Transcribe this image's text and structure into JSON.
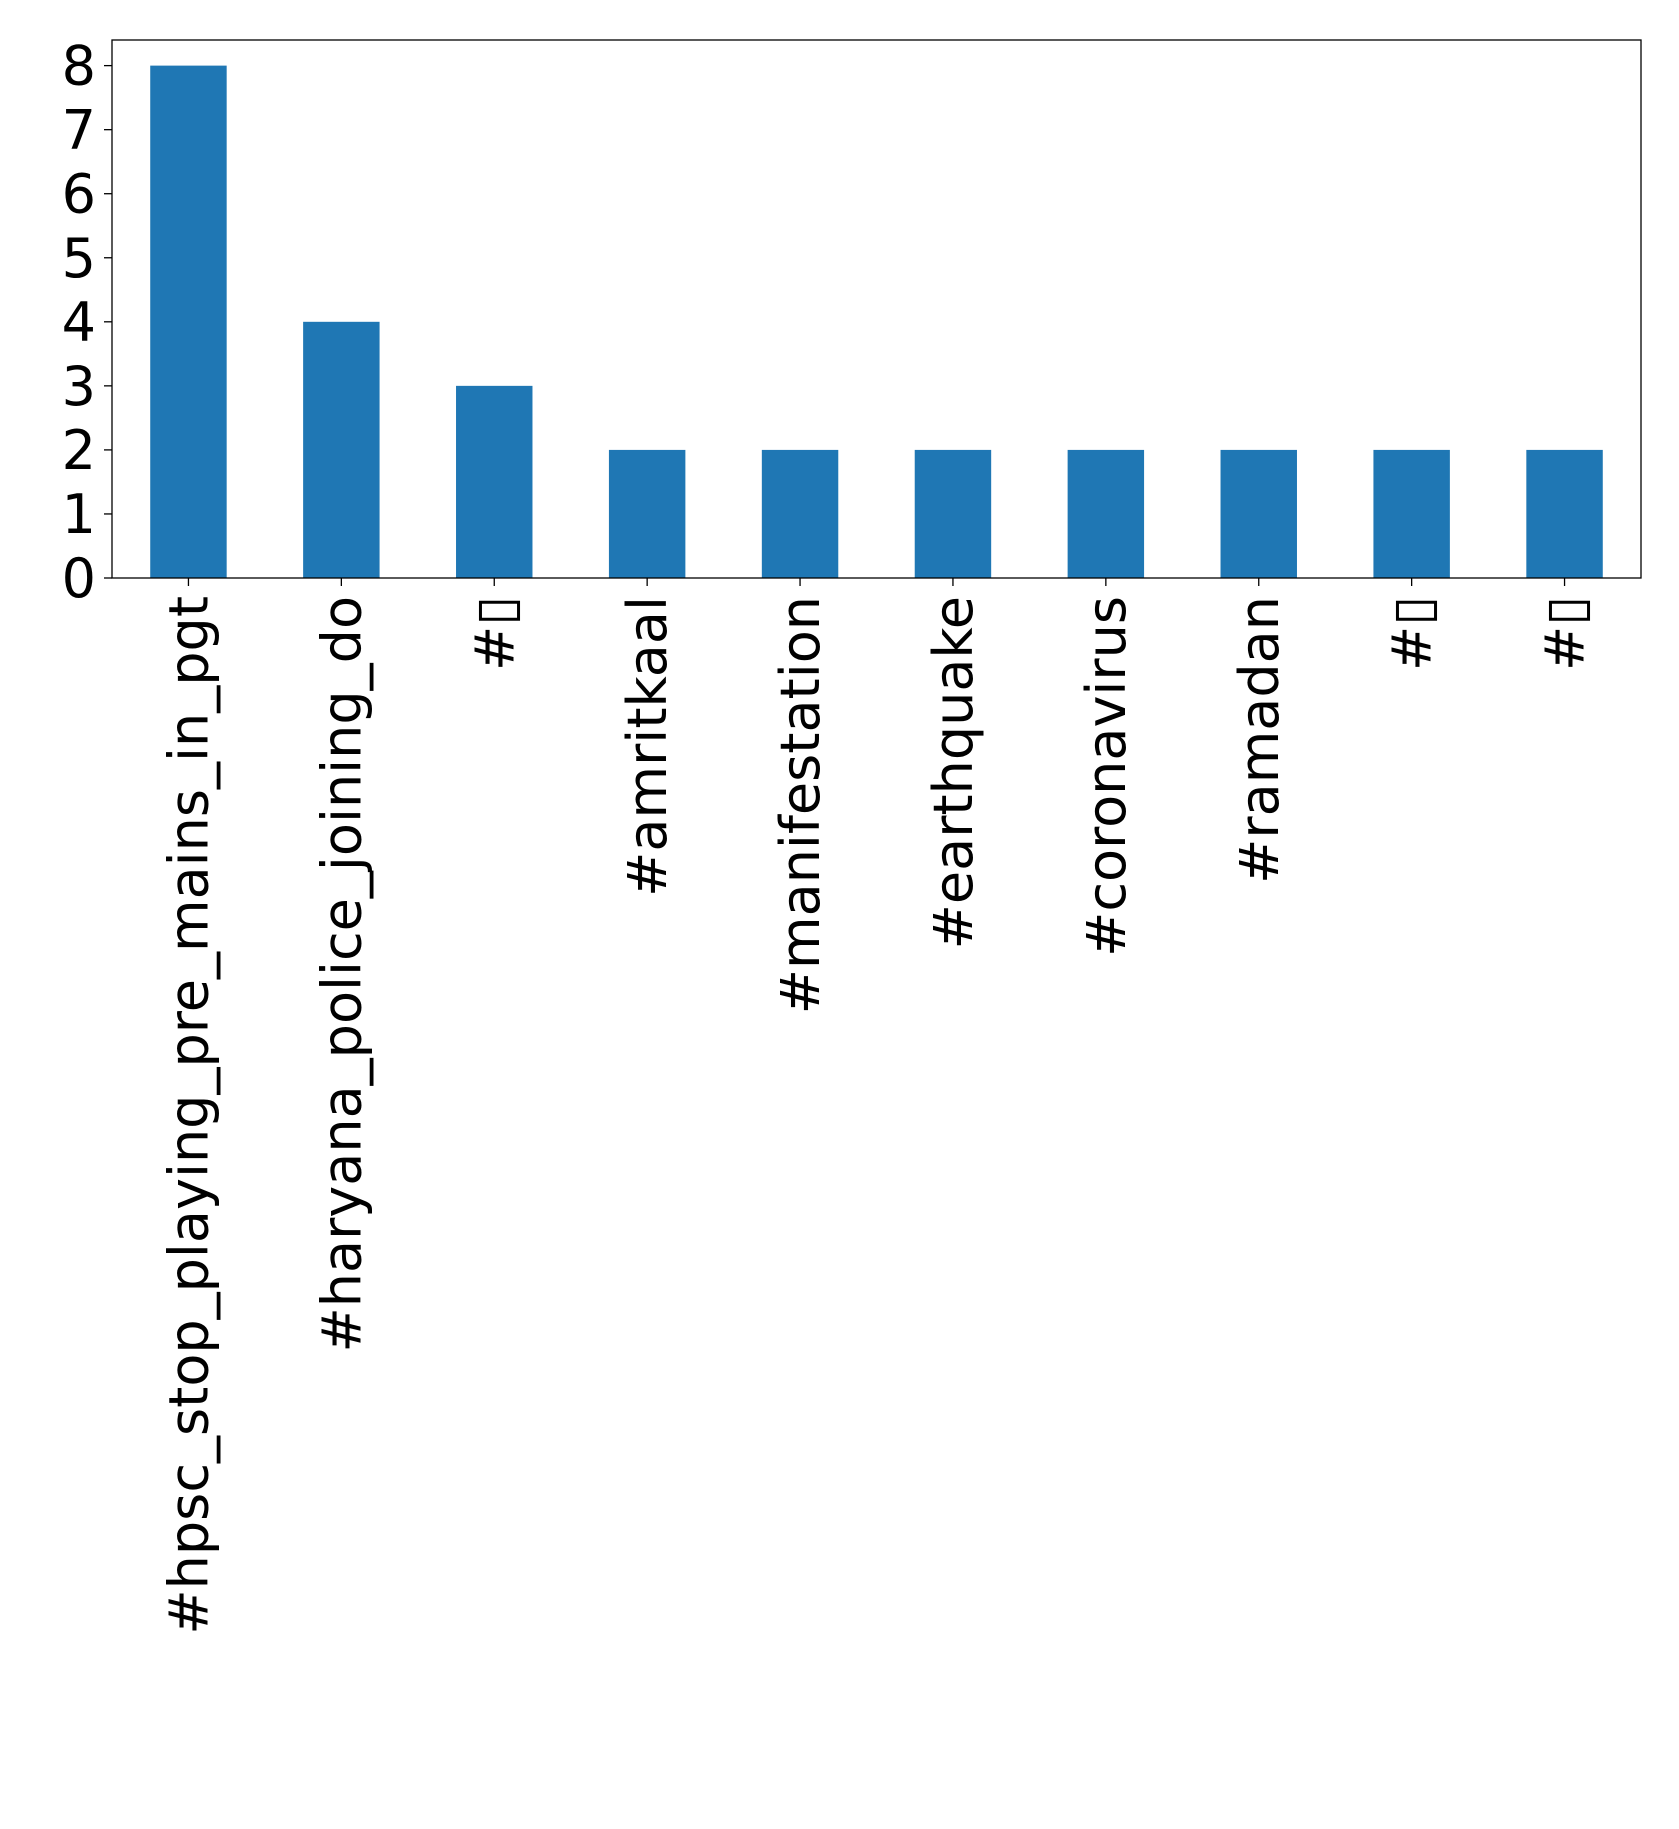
{
  "chart_data": {
    "type": "bar",
    "title": "",
    "xlabel": "",
    "ylabel": "",
    "categories": [
      "#hpsc_stop_playing_pre_mains_in_pgt",
      "#haryana_police_joining_do",
      "#▯",
      "#amritkaal",
      "#manifestation",
      "#earthquake",
      "#coronavirus",
      "#ramadan",
      "#▯",
      "#▯"
    ],
    "values": [
      8,
      4,
      3,
      2,
      2,
      2,
      2,
      2,
      2,
      2
    ],
    "ylim": [
      0,
      8.4
    ],
    "yticks": [
      0,
      1,
      2,
      3,
      4,
      5,
      6,
      7,
      8
    ],
    "grid": false,
    "legend": "none",
    "bar_color": "#1f77b4"
  }
}
